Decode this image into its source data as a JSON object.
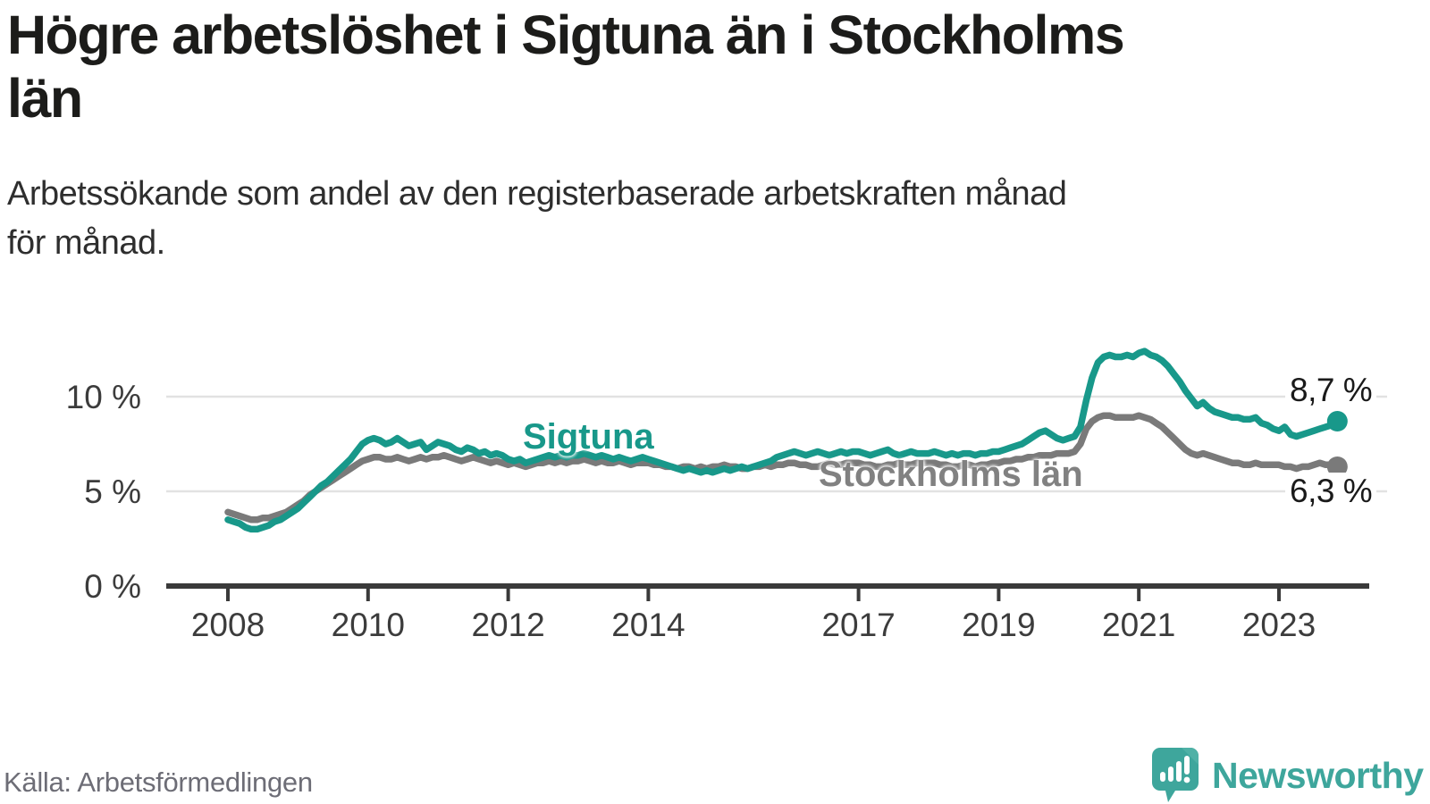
{
  "title": {
    "lines": [
      "Högre arbetslöshet i Sigtuna än i Stockholms",
      "län"
    ]
  },
  "subtitle": {
    "lines": [
      "Arbetssökande som andel av den registerbaserade arbetskraften månad",
      "för månad."
    ]
  },
  "source": "Källa: Arbetsförmedlingen",
  "brand": {
    "name": "Newsworthy",
    "color": "#3EA69C"
  },
  "chart_data": {
    "type": "line",
    "title": "Högre arbetslöshet i Sigtuna än i Stockholms län",
    "subtitle": "Arbetssökande som andel av den registerbaserade arbetskraften månad för månad.",
    "frequency": "monthly",
    "x_start": "2008-01",
    "x_end": "2023-11",
    "grid": "horizontal-only",
    "ylim": [
      0,
      13
    ],
    "y_ticks": [
      {
        "label": "0 %",
        "value": 0
      },
      {
        "label": "5 %",
        "value": 5
      },
      {
        "label": "10 %",
        "value": 10
      }
    ],
    "y_gridlines": [
      5,
      10
    ],
    "x_ticks": [
      {
        "label": "2008",
        "year": 2008
      },
      {
        "label": "2010",
        "year": 2010
      },
      {
        "label": "2012",
        "year": 2012
      },
      {
        "label": "2014",
        "year": 2014
      },
      {
        "label": "2017",
        "year": 2017
      },
      {
        "label": "2019",
        "year": 2019
      },
      {
        "label": "2021",
        "year": 2021
      },
      {
        "label": "2023",
        "year": 2023
      }
    ],
    "series": [
      {
        "name": "Stockholms län",
        "color": "#7a7a7a",
        "end_label": "6,3 %",
        "end_value": 6.3,
        "values": [
          3.9,
          3.8,
          3.7,
          3.6,
          3.5,
          3.5,
          3.6,
          3.6,
          3.7,
          3.8,
          3.9,
          4.1,
          4.3,
          4.5,
          4.8,
          5.0,
          5.2,
          5.4,
          5.6,
          5.8,
          6.0,
          6.2,
          6.4,
          6.6,
          6.7,
          6.8,
          6.8,
          6.7,
          6.7,
          6.8,
          6.7,
          6.6,
          6.7,
          6.8,
          6.7,
          6.8,
          6.8,
          6.9,
          6.8,
          6.7,
          6.6,
          6.7,
          6.8,
          6.7,
          6.6,
          6.5,
          6.6,
          6.5,
          6.4,
          6.5,
          6.4,
          6.3,
          6.4,
          6.5,
          6.5,
          6.6,
          6.5,
          6.6,
          6.5,
          6.6,
          6.6,
          6.7,
          6.6,
          6.5,
          6.6,
          6.5,
          6.5,
          6.6,
          6.5,
          6.4,
          6.5,
          6.5,
          6.5,
          6.4,
          6.4,
          6.3,
          6.3,
          6.2,
          6.3,
          6.3,
          6.2,
          6.3,
          6.2,
          6.3,
          6.3,
          6.4,
          6.3,
          6.3,
          6.2,
          6.2,
          6.3,
          6.3,
          6.4,
          6.3,
          6.4,
          6.4,
          6.5,
          6.5,
          6.4,
          6.4,
          6.3,
          6.3,
          6.4,
          6.5,
          6.4,
          6.4,
          6.5,
          6.5,
          6.5,
          6.4,
          6.4,
          6.3,
          6.3,
          6.4,
          6.4,
          6.5,
          6.4,
          6.4,
          6.5,
          6.5,
          6.5,
          6.5,
          6.4,
          6.4,
          6.3,
          6.3,
          6.4,
          6.4,
          6.3,
          6.4,
          6.4,
          6.5,
          6.5,
          6.6,
          6.6,
          6.7,
          6.7,
          6.8,
          6.8,
          6.9,
          6.9,
          6.9,
          7.0,
          7.0,
          7.0,
          7.1,
          7.5,
          8.3,
          8.7,
          8.9,
          9.0,
          9.0,
          8.9,
          8.9,
          8.9,
          8.9,
          9.0,
          8.9,
          8.8,
          8.6,
          8.4,
          8.1,
          7.8,
          7.5,
          7.2,
          7.0,
          6.9,
          7.0,
          6.9,
          6.8,
          6.7,
          6.6,
          6.5,
          6.5,
          6.4,
          6.4,
          6.5,
          6.4,
          6.4,
          6.4,
          6.4,
          6.3,
          6.3,
          6.2,
          6.3,
          6.3,
          6.4,
          6.5,
          6.4,
          6.4,
          6.3
        ]
      },
      {
        "name": "Sigtuna",
        "color": "#18988a",
        "end_label": "8,7 %",
        "end_value": 8.7,
        "values": [
          3.5,
          3.4,
          3.3,
          3.1,
          3.0,
          3.0,
          3.1,
          3.2,
          3.4,
          3.5,
          3.7,
          3.9,
          4.1,
          4.4,
          4.7,
          5.0,
          5.3,
          5.5,
          5.8,
          6.1,
          6.4,
          6.7,
          7.1,
          7.5,
          7.7,
          7.8,
          7.7,
          7.5,
          7.6,
          7.8,
          7.6,
          7.4,
          7.5,
          7.6,
          7.2,
          7.4,
          7.6,
          7.5,
          7.4,
          7.2,
          7.1,
          7.3,
          7.2,
          7.0,
          7.1,
          6.9,
          7.0,
          6.9,
          6.7,
          6.6,
          6.7,
          6.5,
          6.6,
          6.7,
          6.8,
          6.9,
          6.8,
          6.9,
          6.8,
          6.9,
          6.9,
          7.0,
          6.9,
          6.8,
          6.9,
          6.8,
          6.7,
          6.8,
          6.7,
          6.6,
          6.7,
          6.8,
          6.7,
          6.6,
          6.5,
          6.4,
          6.3,
          6.2,
          6.1,
          6.2,
          6.1,
          6.0,
          6.1,
          6.0,
          6.1,
          6.2,
          6.1,
          6.2,
          6.3,
          6.2,
          6.3,
          6.4,
          6.5,
          6.6,
          6.8,
          6.9,
          7.0,
          7.1,
          7.0,
          6.9,
          7.0,
          7.1,
          7.0,
          6.9,
          7.0,
          7.1,
          7.0,
          7.1,
          7.1,
          7.0,
          6.9,
          7.0,
          7.1,
          7.2,
          7.0,
          6.9,
          7.0,
          7.1,
          7.0,
          7.0,
          7.0,
          7.1,
          7.0,
          6.9,
          7.0,
          6.9,
          7.0,
          7.0,
          6.9,
          7.0,
          7.0,
          7.1,
          7.1,
          7.2,
          7.3,
          7.4,
          7.5,
          7.7,
          7.9,
          8.1,
          8.2,
          8.0,
          7.8,
          7.7,
          7.8,
          7.9,
          8.4,
          9.8,
          11.0,
          11.8,
          12.1,
          12.2,
          12.1,
          12.1,
          12.2,
          12.1,
          12.3,
          12.4,
          12.2,
          12.1,
          11.9,
          11.6,
          11.2,
          10.8,
          10.3,
          9.9,
          9.5,
          9.7,
          9.4,
          9.2,
          9.1,
          9.0,
          8.9,
          8.9,
          8.8,
          8.8,
          8.9,
          8.6,
          8.5,
          8.3,
          8.2,
          8.4,
          8.0,
          7.9,
          8.0,
          8.1,
          8.2,
          8.3,
          8.4,
          8.5,
          8.7
        ]
      }
    ]
  }
}
